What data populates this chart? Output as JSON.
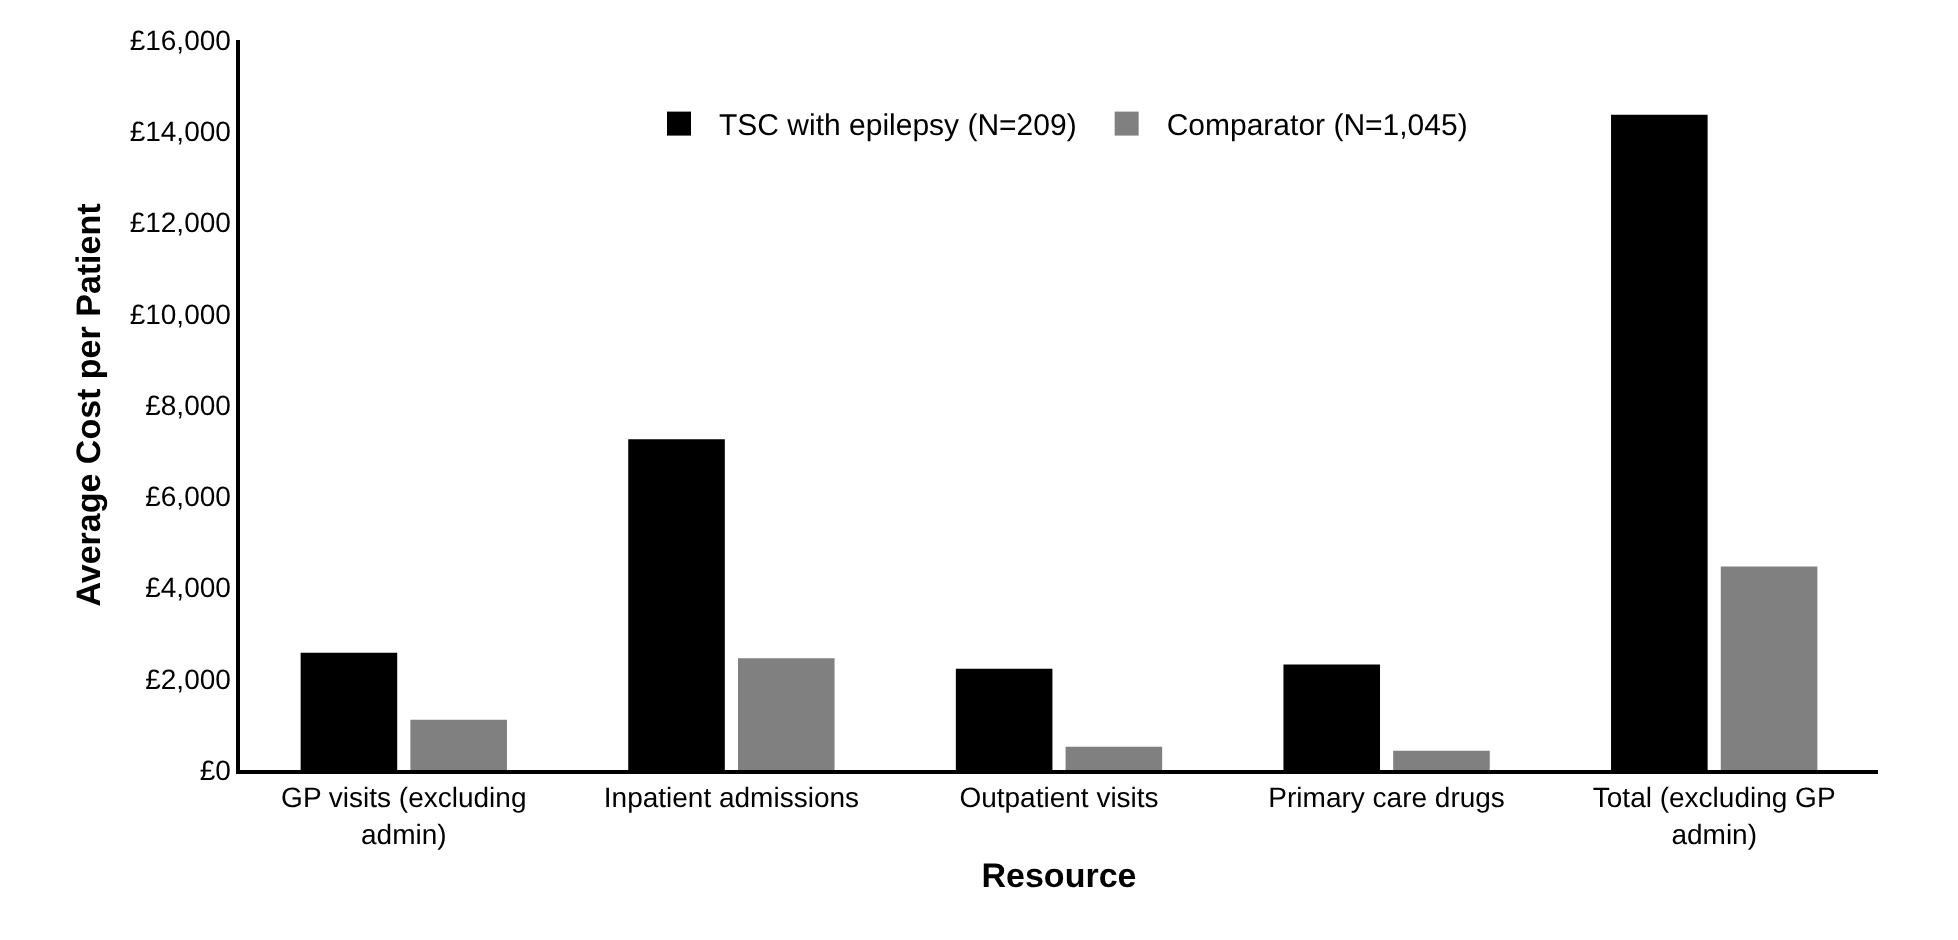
{
  "chart_data": {
    "type": "bar",
    "xlabel": "Resource",
    "ylabel": "Average Cost per Patient",
    "categories": [
      "GP visits (excluding admin)",
      "Inpatient admissions",
      "Outpatient visits",
      "Primary care drugs",
      "Total (excluding GP admin)"
    ],
    "series": [
      {
        "name": "TSC with epilepsy (N=209)",
        "color": "#000000",
        "values": [
          2570,
          7250,
          2220,
          2310,
          14360
        ]
      },
      {
        "name": "Comparator (N=1,045)",
        "color": "#808080",
        "values": [
          1100,
          2450,
          510,
          420,
          4460
        ]
      }
    ],
    "ylim": [
      0,
      16000
    ],
    "yticks": [
      {
        "value": 0,
        "label": "£0"
      },
      {
        "value": 2000,
        "label": "£2,000"
      },
      {
        "value": 4000,
        "label": "£4,000"
      },
      {
        "value": 6000,
        "label": "£6,000"
      },
      {
        "value": 8000,
        "label": "£8,000"
      },
      {
        "value": 10000,
        "label": "£10,000"
      },
      {
        "value": 12000,
        "label": "£12,000"
      },
      {
        "value": 14000,
        "label": "£14,000"
      },
      {
        "value": 16000,
        "label": "£16,000"
      }
    ],
    "grid": false,
    "legend": "top"
  }
}
